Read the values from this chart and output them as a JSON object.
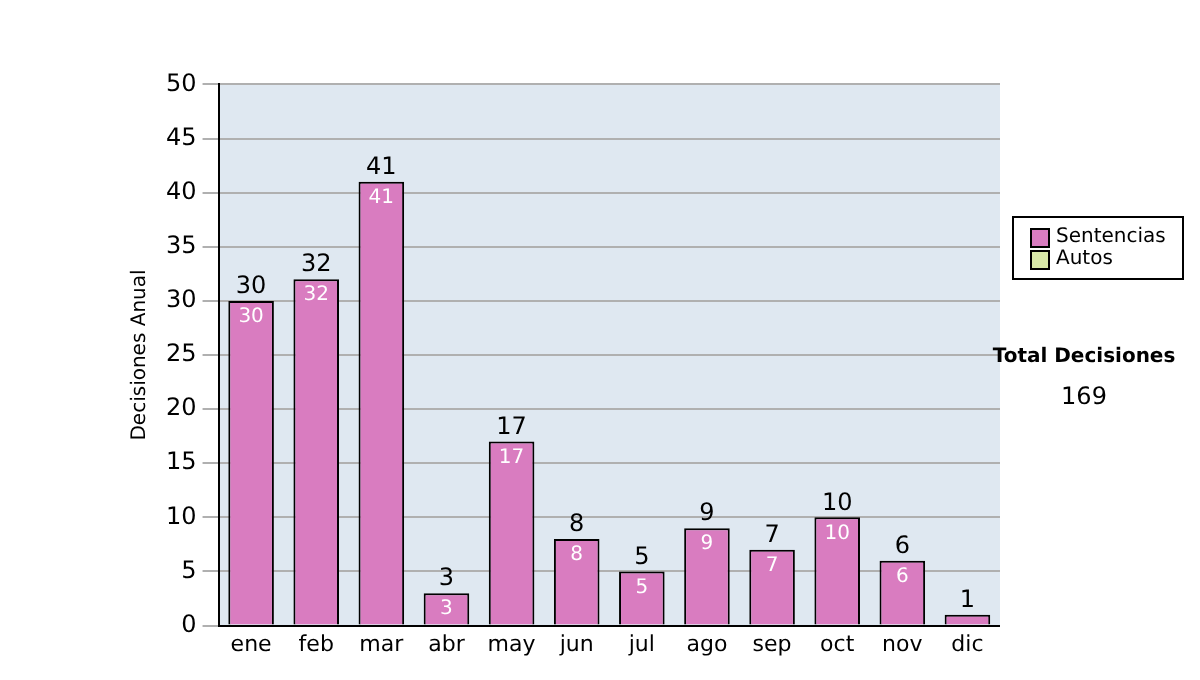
{
  "chart_data": {
    "type": "bar",
    "ylabel": "Decisiones Anual",
    "categories": [
      "ene",
      "feb",
      "mar",
      "abr",
      "may",
      "jun",
      "jul",
      "ago",
      "sep",
      "oct",
      "nov",
      "dic"
    ],
    "series": [
      {
        "name": "Sentencias",
        "color": "#d97cc0",
        "values": [
          30,
          32,
          41,
          3,
          17,
          8,
          5,
          9,
          7,
          10,
          6,
          1
        ],
        "value_labels": [
          "30",
          "32",
          "41",
          "3",
          "17",
          "8",
          "5",
          "9",
          "7",
          "10",
          "6",
          null
        ]
      },
      {
        "name": "Autos",
        "color": "#d8e8a8",
        "values": [
          0,
          0,
          0,
          0,
          0,
          0,
          0,
          0,
          0,
          0,
          0,
          0
        ]
      }
    ],
    "stacked": true,
    "totals": [
      "30",
      "32",
      "41",
      "3",
      "17",
      "8",
      "5",
      "9",
      "7",
      "10",
      "6",
      "1"
    ],
    "ylim": [
      0,
      50
    ],
    "yticks": [
      0,
      5,
      10,
      15,
      20,
      25,
      30,
      35,
      40,
      45,
      50
    ],
    "grid": "y",
    "legend": "right",
    "annotations": [
      "Total Decisiones",
      "169"
    ]
  }
}
